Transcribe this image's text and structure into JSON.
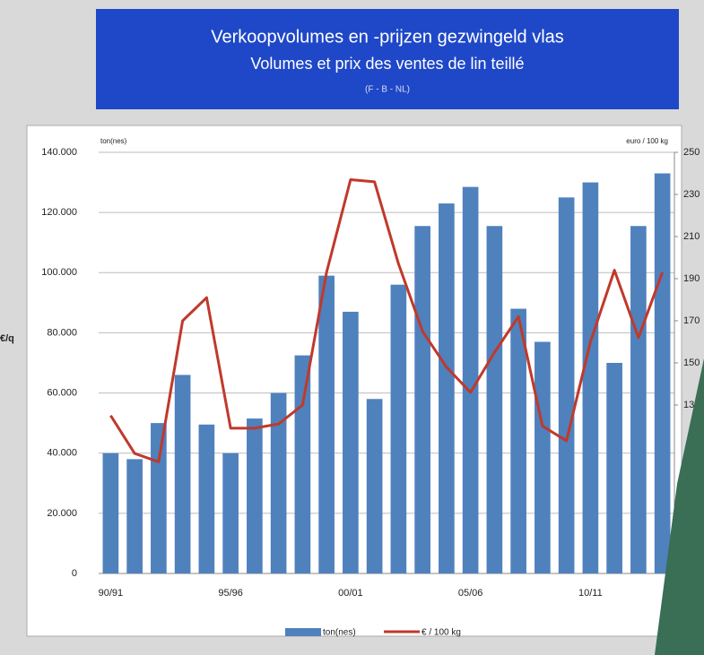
{
  "chart_data": {
    "type": "bar_line",
    "title": "Verkoopvolumes en -prijzen gezwingeld vlas",
    "subtitle": "Volumes et prix des ventes de lin teillé",
    "note": "(F - B - NL)",
    "y_label": "ton(nes)",
    "y2_label": "euro / 100 kg",
    "side_label": "€/q",
    "categories": [
      "90/91",
      null,
      null,
      null,
      null,
      "95/96",
      null,
      null,
      null,
      null,
      "00/01",
      null,
      null,
      null,
      null,
      "05/06",
      null,
      null,
      null,
      null,
      "10/11",
      null,
      null,
      null
    ],
    "series": [
      {
        "name": "ton(nes)",
        "color": "#4f81bd",
        "kind": "bar",
        "values": [
          40000,
          38000,
          50000,
          66000,
          49500,
          40000,
          51500,
          60000,
          72500,
          99000,
          87000,
          58000,
          96000,
          115500,
          123000,
          128500,
          115500,
          88000,
          77000,
          125000,
          130000,
          70000,
          115500,
          133000
        ]
      },
      {
        "name": "€ / 100 kg",
        "color": "#c0392b",
        "kind": "line",
        "axis": "y2",
        "values": [
          125,
          107,
          103,
          170,
          181,
          119,
          119,
          121,
          130,
          193,
          237,
          236,
          197,
          165,
          148,
          136,
          155,
          172,
          120,
          113,
          160,
          194,
          162,
          193
        ]
      }
    ],
    "ylim": [
      0,
      140000
    ],
    "yticks": [
      0,
      {
        "value": 20000,
        "label": "20.000"
      },
      {
        "value": 40000,
        "label": "40.000"
      },
      {
        "value": 60000,
        "label": "60.000"
      },
      {
        "value": 80000,
        "label": "80.000"
      },
      {
        "value": 100000,
        "label": "100.000"
      },
      {
        "value": 120000,
        "label": "120.000"
      },
      {
        "value": 140000,
        "label": "140.000"
      }
    ],
    "y2lim": [
      50,
      250
    ],
    "y2ticks": [
      130,
      150,
      170,
      190,
      210,
      230,
      250
    ],
    "grid": true
  }
}
